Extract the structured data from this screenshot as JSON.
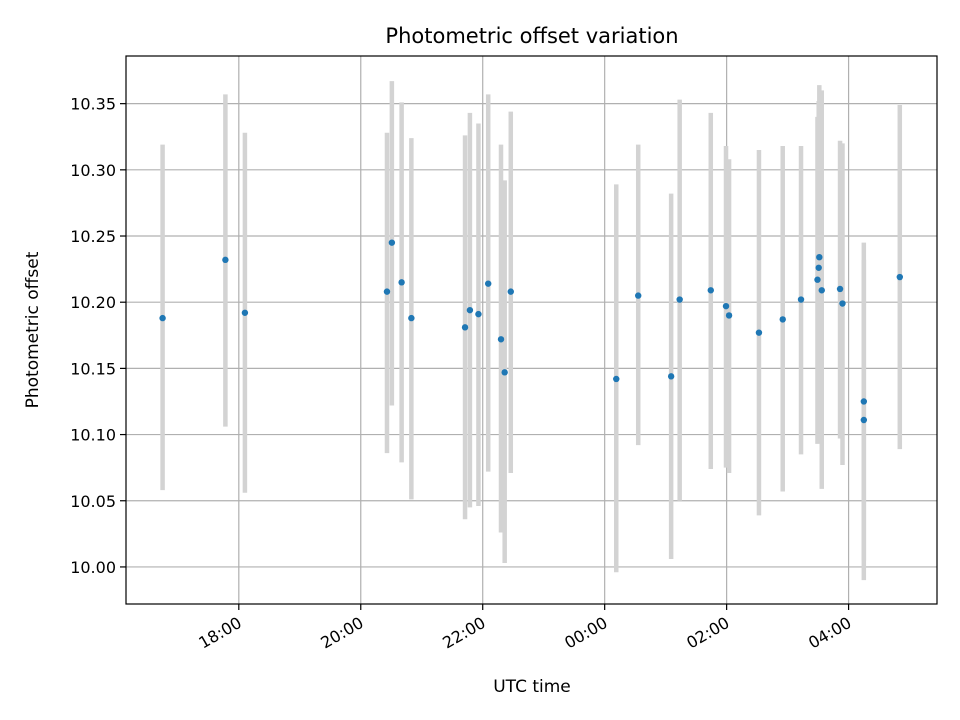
{
  "chart_data": {
    "type": "scatter",
    "title": "Photometric offset variation",
    "xlabel": "UTC time",
    "ylabel": "Photometric offset",
    "x_unit": "hours UTC (night of observation, times after midnight shown as 24+)",
    "xlim": [
      16.15,
      29.45
    ],
    "ylim": [
      9.972,
      10.386
    ],
    "x_ticks": [
      {
        "value": 18,
        "label": "18:00"
      },
      {
        "value": 20,
        "label": "20:00"
      },
      {
        "value": 22,
        "label": "22:00"
      },
      {
        "value": 24,
        "label": "00:00"
      },
      {
        "value": 26,
        "label": "02:00"
      },
      {
        "value": 28,
        "label": "04:00"
      }
    ],
    "y_ticks": [
      {
        "value": 10.0,
        "label": "10.00"
      },
      {
        "value": 10.05,
        "label": "10.05"
      },
      {
        "value": 10.1,
        "label": "10.10"
      },
      {
        "value": 10.15,
        "label": "10.15"
      },
      {
        "value": 10.2,
        "label": "10.20"
      },
      {
        "value": 10.25,
        "label": "10.25"
      },
      {
        "value": 10.3,
        "label": "10.30"
      },
      {
        "value": 10.35,
        "label": "10.35"
      }
    ],
    "grid": true,
    "colors": {
      "points": "#1f77b4",
      "error_bars": "#d3d3d3",
      "grid": "#b0b0b0"
    },
    "points": [
      {
        "x": 16.75,
        "y": 10.188,
        "lo": 10.058,
        "hi": 10.319
      },
      {
        "x": 17.78,
        "y": 10.232,
        "lo": 10.106,
        "hi": 10.357
      },
      {
        "x": 18.1,
        "y": 10.192,
        "lo": 10.056,
        "hi": 10.328
      },
      {
        "x": 20.43,
        "y": 10.208,
        "lo": 10.086,
        "hi": 10.328
      },
      {
        "x": 20.51,
        "y": 10.245,
        "lo": 10.122,
        "hi": 10.367
      },
      {
        "x": 20.67,
        "y": 10.215,
        "lo": 10.079,
        "hi": 10.351
      },
      {
        "x": 20.83,
        "y": 10.188,
        "lo": 10.051,
        "hi": 10.324
      },
      {
        "x": 21.71,
        "y": 10.181,
        "lo": 10.036,
        "hi": 10.326
      },
      {
        "x": 21.79,
        "y": 10.194,
        "lo": 10.045,
        "hi": 10.343
      },
      {
        "x": 21.93,
        "y": 10.191,
        "lo": 10.046,
        "hi": 10.335
      },
      {
        "x": 22.09,
        "y": 10.214,
        "lo": 10.072,
        "hi": 10.357
      },
      {
        "x": 22.3,
        "y": 10.172,
        "lo": 10.026,
        "hi": 10.319
      },
      {
        "x": 22.36,
        "y": 10.147,
        "lo": 10.003,
        "hi": 10.292
      },
      {
        "x": 22.46,
        "y": 10.208,
        "lo": 10.071,
        "hi": 10.344
      },
      {
        "x": 24.19,
        "y": 10.142,
        "lo": 9.996,
        "hi": 10.289
      },
      {
        "x": 24.55,
        "y": 10.205,
        "lo": 10.092,
        "hi": 10.319
      },
      {
        "x": 25.09,
        "y": 10.144,
        "lo": 10.006,
        "hi": 10.282
      },
      {
        "x": 25.23,
        "y": 10.202,
        "lo": 10.05,
        "hi": 10.353
      },
      {
        "x": 25.74,
        "y": 10.209,
        "lo": 10.074,
        "hi": 10.343
      },
      {
        "x": 25.99,
        "y": 10.197,
        "lo": 10.075,
        "hi": 10.318
      },
      {
        "x": 26.04,
        "y": 10.19,
        "lo": 10.071,
        "hi": 10.308
      },
      {
        "x": 26.53,
        "y": 10.177,
        "lo": 10.039,
        "hi": 10.315
      },
      {
        "x": 26.92,
        "y": 10.187,
        "lo": 10.057,
        "hi": 10.318
      },
      {
        "x": 27.22,
        "y": 10.202,
        "lo": 10.085,
        "hi": 10.318
      },
      {
        "x": 27.49,
        "y": 10.217,
        "lo": 10.093,
        "hi": 10.34
      },
      {
        "x": 27.51,
        "y": 10.226,
        "lo": 10.099,
        "hi": 10.352
      },
      {
        "x": 27.52,
        "y": 10.234,
        "lo": 10.105,
        "hi": 10.364
      },
      {
        "x": 27.56,
        "y": 10.209,
        "lo": 10.059,
        "hi": 10.36
      },
      {
        "x": 27.86,
        "y": 10.21,
        "lo": 10.097,
        "hi": 10.322
      },
      {
        "x": 27.9,
        "y": 10.199,
        "lo": 10.077,
        "hi": 10.32
      },
      {
        "x": 28.25,
        "y": 10.125,
        "lo": 10.005,
        "hi": 10.245
      },
      {
        "x": 28.25,
        "y": 10.111,
        "lo": 9.99,
        "hi": 10.232
      },
      {
        "x": 28.84,
        "y": 10.219,
        "lo": 10.089,
        "hi": 10.349
      }
    ]
  }
}
